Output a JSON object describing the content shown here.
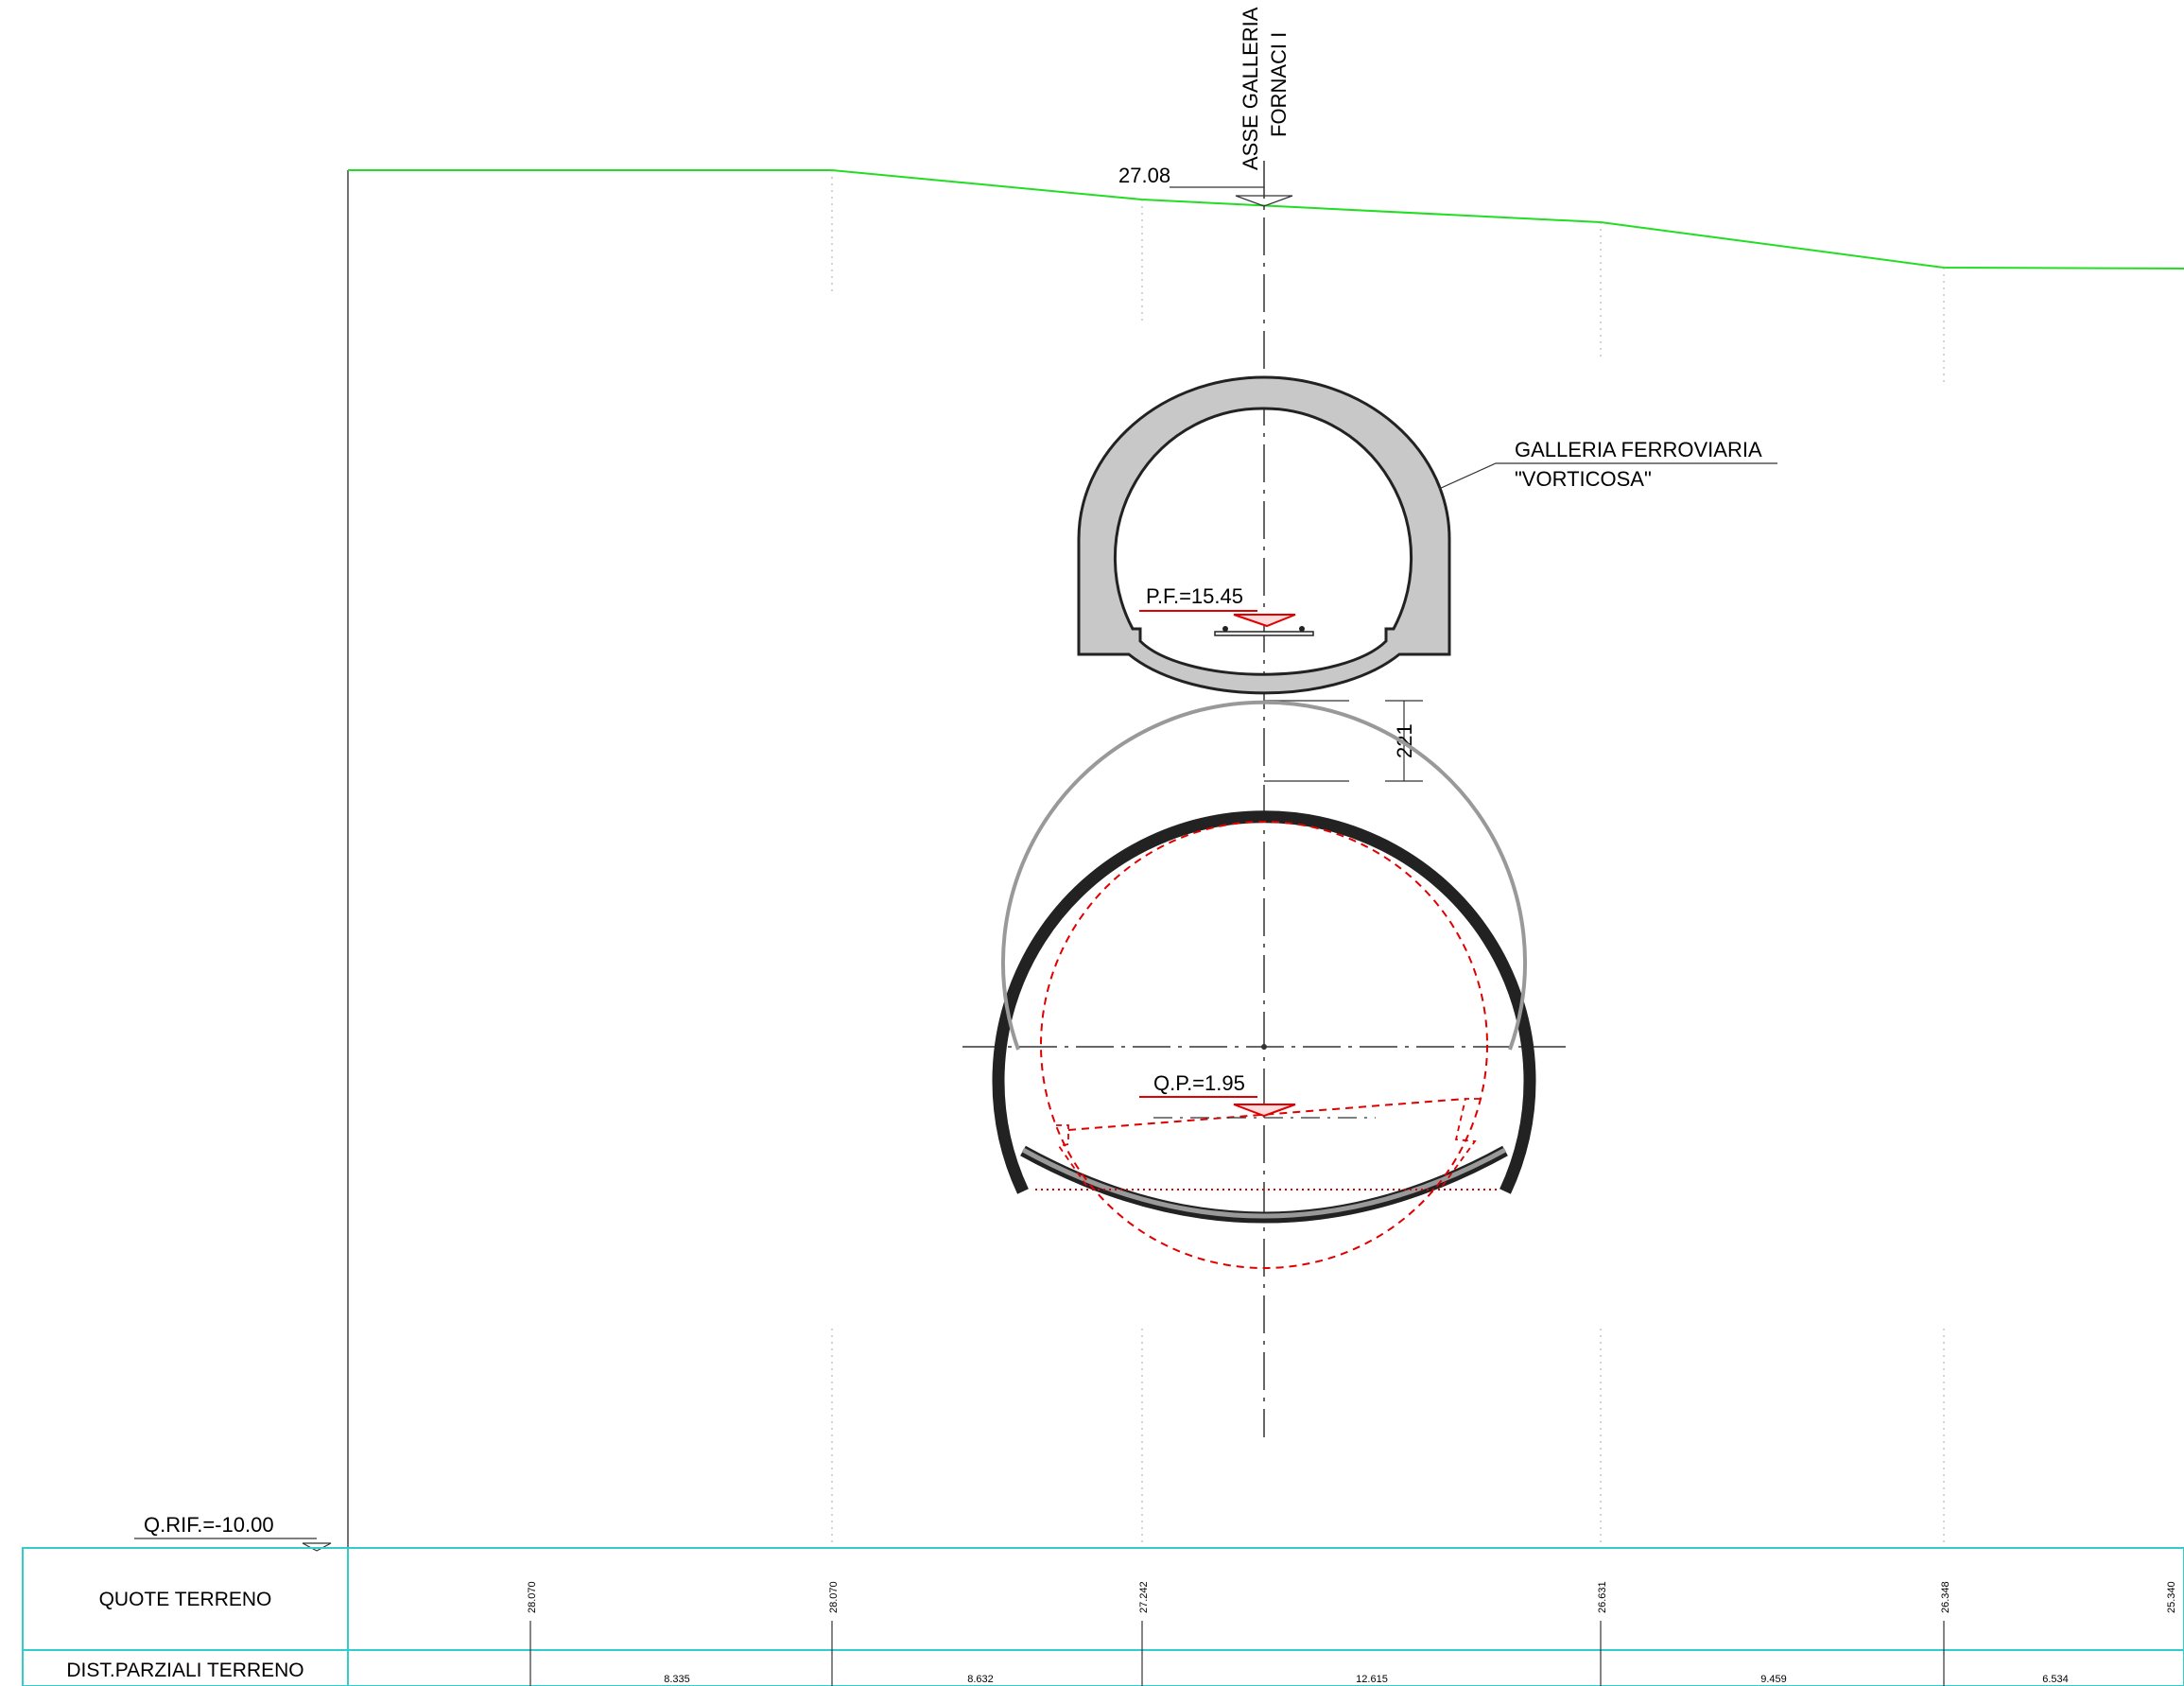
{
  "axis": {
    "line1": "ASSE GALLERIA",
    "line2": "FORNACI I",
    "ground_level": "27.08"
  },
  "railway_tunnel": {
    "name_line1": "GALLERIA FERROVIARIA",
    "name_line2": "\"VORTICOSA\"",
    "level": "P.F.=15.45"
  },
  "clearance": "221",
  "lower_tunnel": {
    "level": "Q.P.=1.95"
  },
  "reference": "Q.RIF.=-10.00",
  "table": {
    "row_quote_label": "QUOTE TERRENO",
    "row_dist_label": "DIST.PARZIALI TERRENO",
    "quotes": [
      "28.070",
      "28.070",
      "27.242",
      "26.631",
      "26.348",
      "25.340"
    ],
    "distances": [
      "8.335",
      "8.632",
      "12.615",
      "9.459",
      "6.534"
    ]
  },
  "colors": {
    "terrain": "#22dd22",
    "dimension_red": "#e00000",
    "table_border": "#33cccc",
    "lining_fill": "#c8c8c8"
  }
}
